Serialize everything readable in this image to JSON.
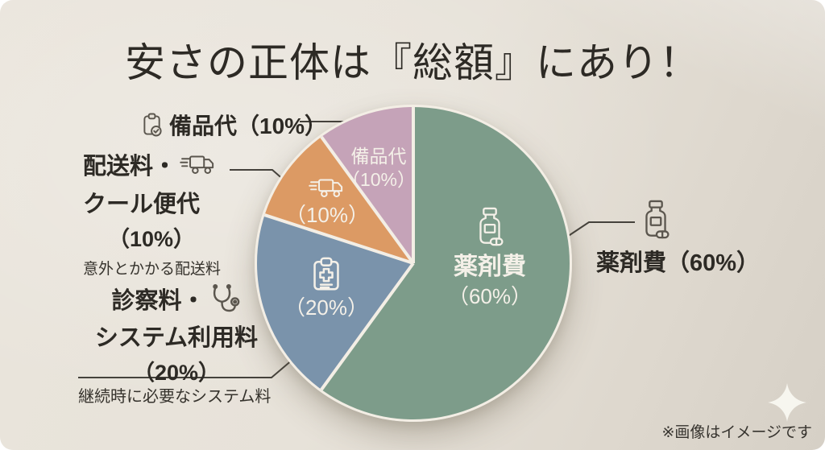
{
  "title": "安さの正体は『総額』にあり！",
  "note": "※画像はイメージです",
  "chart_data": {
    "type": "pie",
    "title": "安さの正体は『総額』にあり！",
    "categories": [
      "薬剤費",
      "診察料・システム利用料",
      "配送料・クール便代",
      "備品代"
    ],
    "values": [
      60,
      20,
      10,
      10
    ],
    "unit": "%",
    "colors": [
      "#7d9c8a",
      "#7a93ab",
      "#dc9a64",
      "#c5a3b8"
    ],
    "start_angle_deg": 0,
    "direction": "clockwise",
    "separator_color": "#f3eee5",
    "slice_labels": [
      {
        "name": "薬剤費",
        "pct": "（60%）",
        "icon": "pill-bottle"
      },
      {
        "name": "",
        "pct": "（20%）",
        "icon": "medical-clipboard"
      },
      {
        "name": "",
        "pct": "（10%）",
        "icon": "delivery-truck"
      },
      {
        "name": "備品代",
        "pct": "（10%）",
        "icon": ""
      }
    ]
  },
  "callouts": {
    "bihin": {
      "label": "備品代（10%）",
      "icon": "clipboard-check"
    },
    "haisou": {
      "line1": "配送料・",
      "line2": "クール便代",
      "line3": "（10%）",
      "sub": "意外とかかる配送料",
      "icon": "delivery-truck"
    },
    "shinsatsu": {
      "line1": "診察料・",
      "line2": "システム利用料",
      "line3": "（20%）",
      "sub": "継続時に必要なシステム料",
      "icon": "stethoscope"
    },
    "yakuzai": {
      "label": "薬剤費（60%）",
      "icon": "pill-bottle"
    }
  }
}
